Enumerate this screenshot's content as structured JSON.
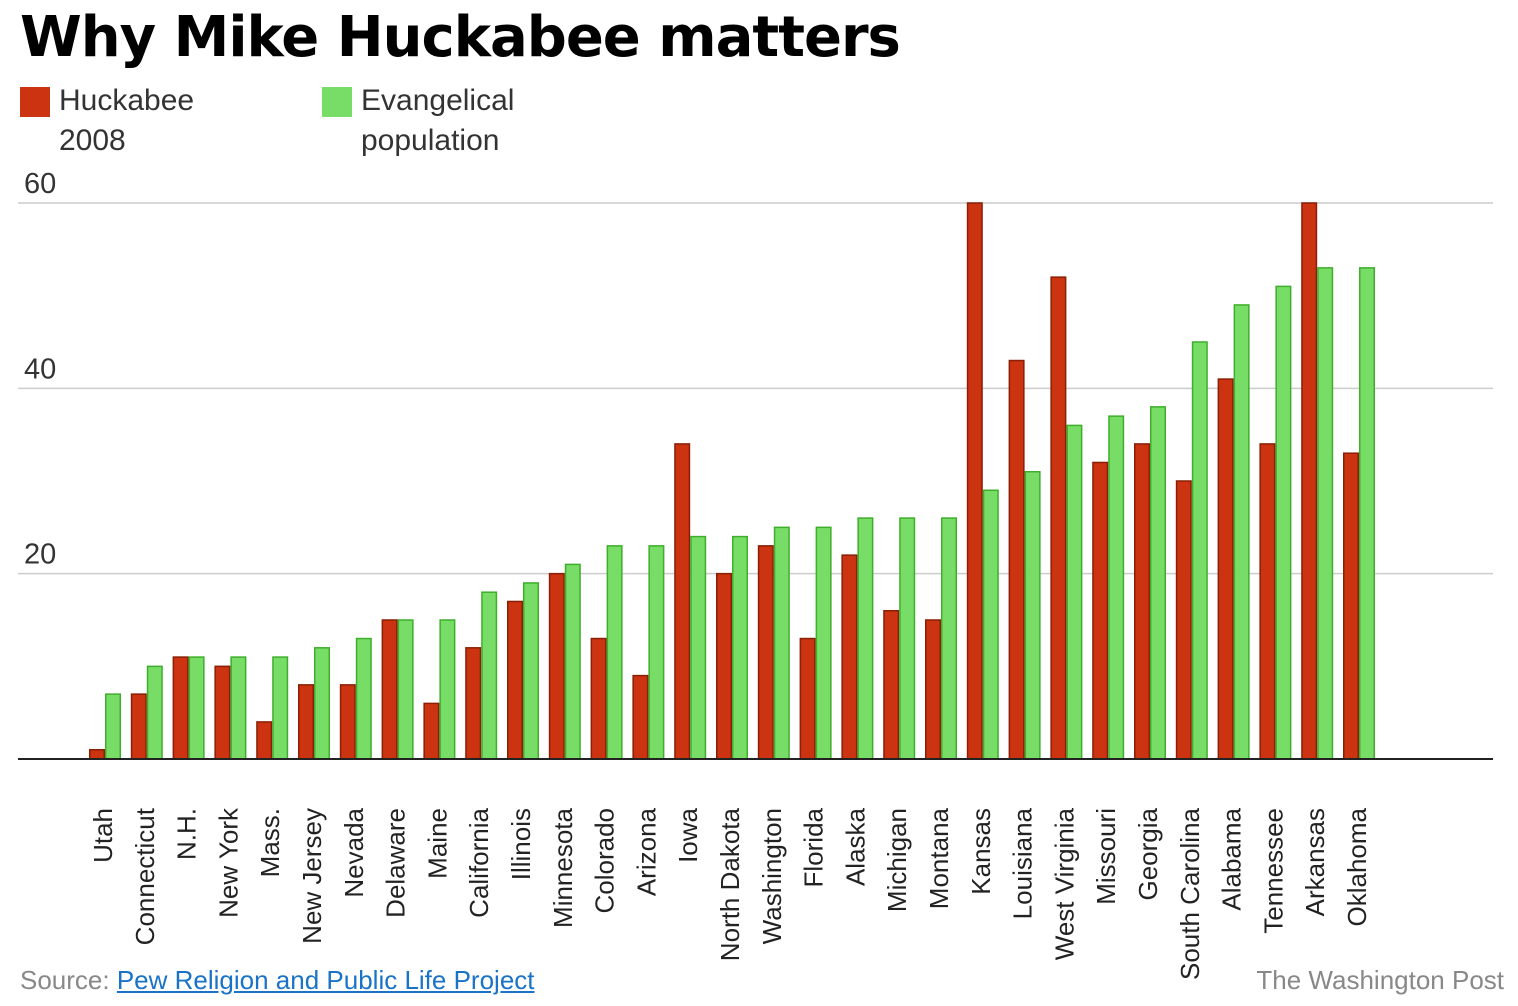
{
  "chart_data": {
    "type": "bar",
    "title": "Why Mike Huckabee matters",
    "xlabel": "",
    "ylabel": "",
    "ylim": [
      0,
      60
    ],
    "yticks": [
      20,
      40,
      60
    ],
    "grid": true,
    "legend_position": "top-left",
    "categories": [
      "Utah",
      "Connecticut",
      "N.H.",
      "New York",
      "Mass.",
      "New Jersey",
      "Nevada",
      "Delaware",
      "Maine",
      "California",
      "Illinois",
      "Minnesota",
      "Colorado",
      "Arizona",
      "Iowa",
      "North Dakota",
      "Washington",
      "Florida",
      "Alaska",
      "Michigan",
      "Montana",
      "Kansas",
      "Louisiana",
      "West Virginia",
      "Missouri",
      "Georgia",
      "South Carolina",
      "Alabama",
      "Tennessee",
      "Arkansas",
      "Oklahoma"
    ],
    "series": [
      {
        "name": "Huckabee 2008",
        "label_lines": [
          "Huckabee",
          "2008"
        ],
        "color": "#cc3311",
        "values": [
          1,
          7,
          11,
          10,
          4,
          8,
          8,
          15,
          6,
          12,
          17,
          20,
          13,
          9,
          34,
          20,
          23,
          13,
          22,
          16,
          15,
          60,
          43,
          52,
          32,
          34,
          30,
          41,
          34,
          60,
          33
        ]
      },
      {
        "name": "Evangelical population",
        "label_lines": [
          "Evangelical",
          "population"
        ],
        "color": "#77dd66",
        "values": [
          7,
          10,
          11,
          11,
          11,
          12,
          13,
          15,
          15,
          18,
          19,
          21,
          23,
          23,
          24,
          24,
          25,
          25,
          26,
          26,
          26,
          29,
          31,
          36,
          37,
          38,
          45,
          49,
          51,
          53,
          53
        ]
      }
    ]
  },
  "footer": {
    "source_prefix": "Source: ",
    "source_link": "Pew Religion and Public Life Project",
    "credit": "The Washington Post"
  }
}
